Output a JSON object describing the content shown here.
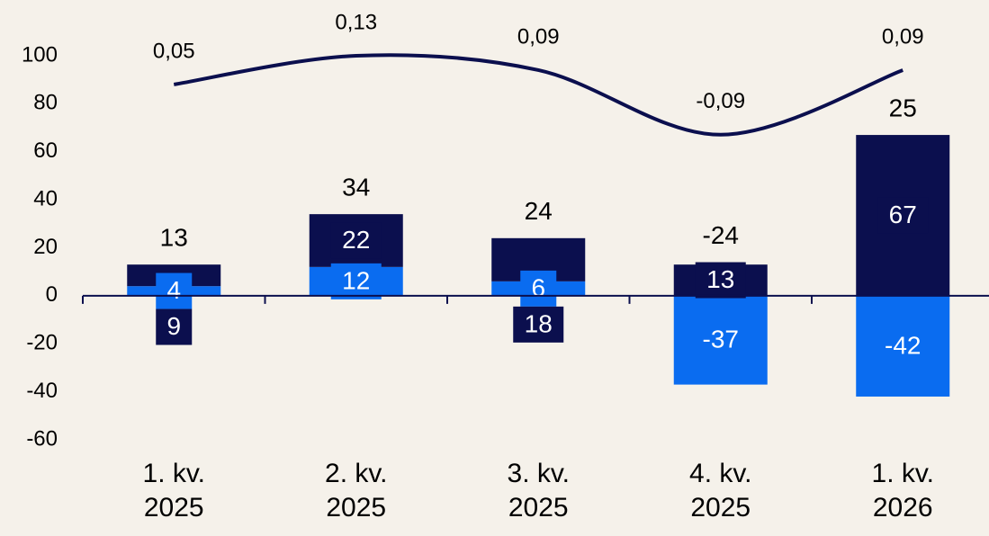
{
  "chart_data": {
    "type": "bar",
    "categories": [
      "1. kv. 2025",
      "2. kv. 2025",
      "3. kv. 2025",
      "4. kv. 2025",
      "1. kv. 2026"
    ],
    "stacked": true,
    "series": [
      {
        "color": "#0a6cf0",
        "values": [
          4,
          12,
          6,
          -37,
          -42
        ]
      },
      {
        "color": "#0b0f4e",
        "values": [
          9,
          22,
          18,
          13,
          67
        ]
      },
      {
        "type": "line",
        "axis": "y2",
        "color": "#0b0f4e",
        "smooth": true,
        "values": [
          0.05,
          0.13,
          0.09,
          -0.09,
          0.09
        ],
        "value_labels": [
          "0,05",
          "0,13",
          "0,09",
          "-0,09",
          "0,09"
        ]
      }
    ],
    "totals": [
      13,
      34,
      24,
      -24,
      25
    ],
    "ylim": [
      -60,
      100
    ],
    "yticks": [
      -60,
      -40,
      -20,
      0,
      20,
      40,
      60,
      80,
      100
    ],
    "y2lim": [
      -0.94,
      0.13
    ],
    "grid": false
  }
}
